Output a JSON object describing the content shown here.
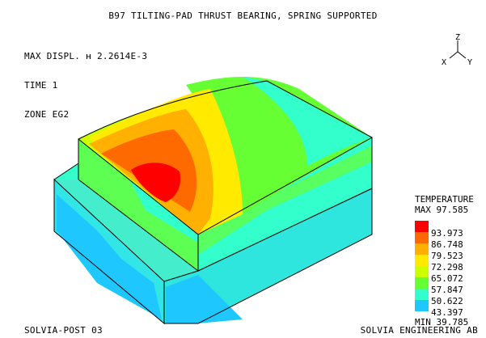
{
  "header": {
    "title": "B97 TILTING-PAD THRUST BEARING, SPRING SUPPORTED"
  },
  "info": {
    "lines": [
      "MAX DISPL. ʜ 2.2614E-3",
      "TIME 1",
      "ZONE EG2"
    ]
  },
  "axes": {
    "z": "Z",
    "x": "X",
    "y": "Y"
  },
  "legend": {
    "title": "TEMPERATURE",
    "max": "MAX 97.585",
    "min": "MIN 39.785",
    "levels": [
      {
        "label": "93.973",
        "color": "#ff0000"
      },
      {
        "label": "86.748",
        "color": "#ff6a00"
      },
      {
        "label": "79.523",
        "color": "#ffb000"
      },
      {
        "label": "72.298",
        "color": "#ffea00"
      },
      {
        "label": "65.072",
        "color": "#ccff00"
      },
      {
        "label": "57.847",
        "color": "#66ff33"
      },
      {
        "label": "50.622",
        "color": "#33ffcc"
      },
      {
        "label": "43.397",
        "color": "#1ec8ff"
      }
    ]
  },
  "footer": {
    "left": "SOLVIA-POST 03",
    "right": "SOLVIA ENGINEERING AB"
  }
}
